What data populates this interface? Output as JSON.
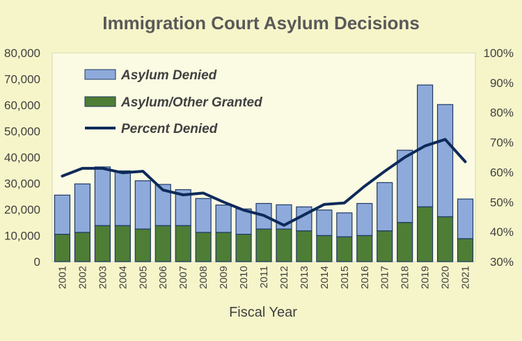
{
  "chart_data": {
    "type": "bar",
    "title": "Immigration Court Asylum Decisions",
    "xlabel": "Fiscal Year",
    "ylabel": "",
    "ylim": [
      0,
      80000
    ],
    "y2lim": [
      0.3,
      1.0
    ],
    "grid": false,
    "stacked": true,
    "legend_position": "top-left",
    "categories": [
      "2001",
      "2002",
      "2003",
      "2004",
      "2005",
      "2006",
      "2007",
      "2008",
      "2009",
      "2010",
      "2011",
      "2012",
      "2013",
      "2014",
      "2015",
      "2016",
      "2017",
      "2018",
      "2019",
      "2020",
      "2021"
    ],
    "series": [
      {
        "name": "Asylum/Other Granted",
        "type": "bar",
        "color": "#4e7d35",
        "values": [
          10500,
          11200,
          13800,
          13800,
          12500,
          13800,
          13800,
          11200,
          11200,
          10500,
          12500,
          12500,
          11800,
          10000,
          9500,
          10000,
          11800,
          15000,
          21000,
          17200,
          8800
        ]
      },
      {
        "name": "Asylum Denied",
        "type": "bar",
        "color": "#8eaadb",
        "values": [
          15000,
          18600,
          22500,
          21000,
          18500,
          15800,
          13800,
          13000,
          10500,
          9700,
          9800,
          9300,
          9200,
          9800,
          9200,
          12300,
          18500,
          27700,
          46700,
          43000,
          15200
        ]
      },
      {
        "name": "Percent Denied",
        "type": "line",
        "axis": "right",
        "color": "#0e2a5a",
        "values": [
          0.587,
          0.613,
          0.613,
          0.598,
          0.603,
          0.54,
          0.524,
          0.53,
          0.5,
          0.473,
          0.455,
          0.422,
          0.457,
          0.492,
          0.497,
          0.553,
          0.603,
          0.65,
          0.688,
          0.71,
          0.635
        ]
      }
    ],
    "left_ticks": [
      "0",
      "10,000",
      "20,000",
      "30,000",
      "40,000",
      "50,000",
      "60,000",
      "70,000",
      "80,000"
    ],
    "right_ticks": [
      "30%",
      "40%",
      "50%",
      "60%",
      "70%",
      "80%",
      "90%",
      "100%"
    ],
    "legend": [
      "Asylum Denied",
      "Asylum/Other Granted",
      "Percent Denied"
    ]
  }
}
